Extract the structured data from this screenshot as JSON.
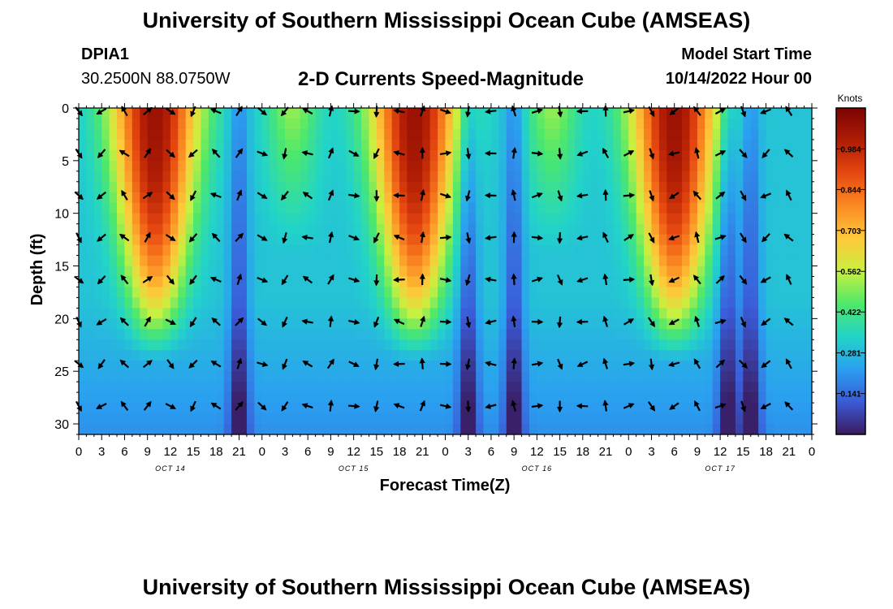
{
  "header": {
    "title": "University of Southern Mississippi Ocean Cube (AMSEAS)",
    "station_id": "DPIA1",
    "station_coords": "30.2500N  88.0750W",
    "subtitle": "2-D Currents Speed-Magnitude",
    "model_start_label": "Model Start Time",
    "model_start_value": "10/14/2022 Hour 00"
  },
  "footer": {
    "title": "University of Southern Mississippi Ocean Cube (AMSEAS)"
  },
  "colors": {
    "colormap": [
      "#3a1a5e",
      "#3b5bd8",
      "#2aa0f0",
      "#22d4c8",
      "#4ee86a",
      "#c8f040",
      "#fec93a",
      "#fb8a22",
      "#e64810",
      "#b01c04",
      "#7a0403"
    ]
  },
  "chart_data": {
    "type": "heatmap",
    "title": "2-D Currents Speed-Magnitude",
    "xlabel": "Forecast Time(Z)",
    "ylabel": "Depth (ft)",
    "x_ticks": [
      "0",
      "3",
      "6",
      "9",
      "12",
      "15",
      "18",
      "21",
      "0",
      "3",
      "6",
      "9",
      "12",
      "15",
      "18",
      "21",
      "0",
      "3",
      "6",
      "9",
      "12",
      "15",
      "18",
      "21",
      "0",
      "3",
      "6",
      "9",
      "12",
      "15",
      "18",
      "21",
      "0"
    ],
    "day_labels": [
      "OCT 14",
      "OCT 15",
      "OCT 16",
      "OCT 17"
    ],
    "y_ticks": [
      "0",
      "5",
      "10",
      "15",
      "20",
      "25",
      "30"
    ],
    "xlim": [
      0,
      96
    ],
    "ylim": [
      0,
      31
    ],
    "colorbar": {
      "label": "Knots",
      "ticks": [
        "0.984",
        "0.844",
        "0.703",
        "0.562",
        "0.422",
        "0.281",
        "0.141"
      ],
      "range": [
        0,
        1.125
      ]
    },
    "vector_depths_ft": [
      0,
      4,
      8,
      12,
      16,
      20,
      24,
      28
    ],
    "vector_hours": [
      0,
      3,
      6,
      9,
      12,
      15,
      18,
      21,
      24,
      27,
      30,
      33,
      36,
      39,
      42,
      45,
      48,
      51,
      54,
      57,
      60,
      63,
      66,
      69,
      72,
      75,
      78,
      81,
      84,
      87,
      90,
      93
    ],
    "speed_pattern": {
      "peak_hours": [
        10,
        44,
        78
      ],
      "peak_speed_knots": 1.06,
      "minor_peak_hours": [
        28,
        62
      ],
      "minor_peak_speed_knots": 0.52,
      "slack_hours": [
        21,
        51,
        57,
        85,
        88
      ]
    }
  }
}
